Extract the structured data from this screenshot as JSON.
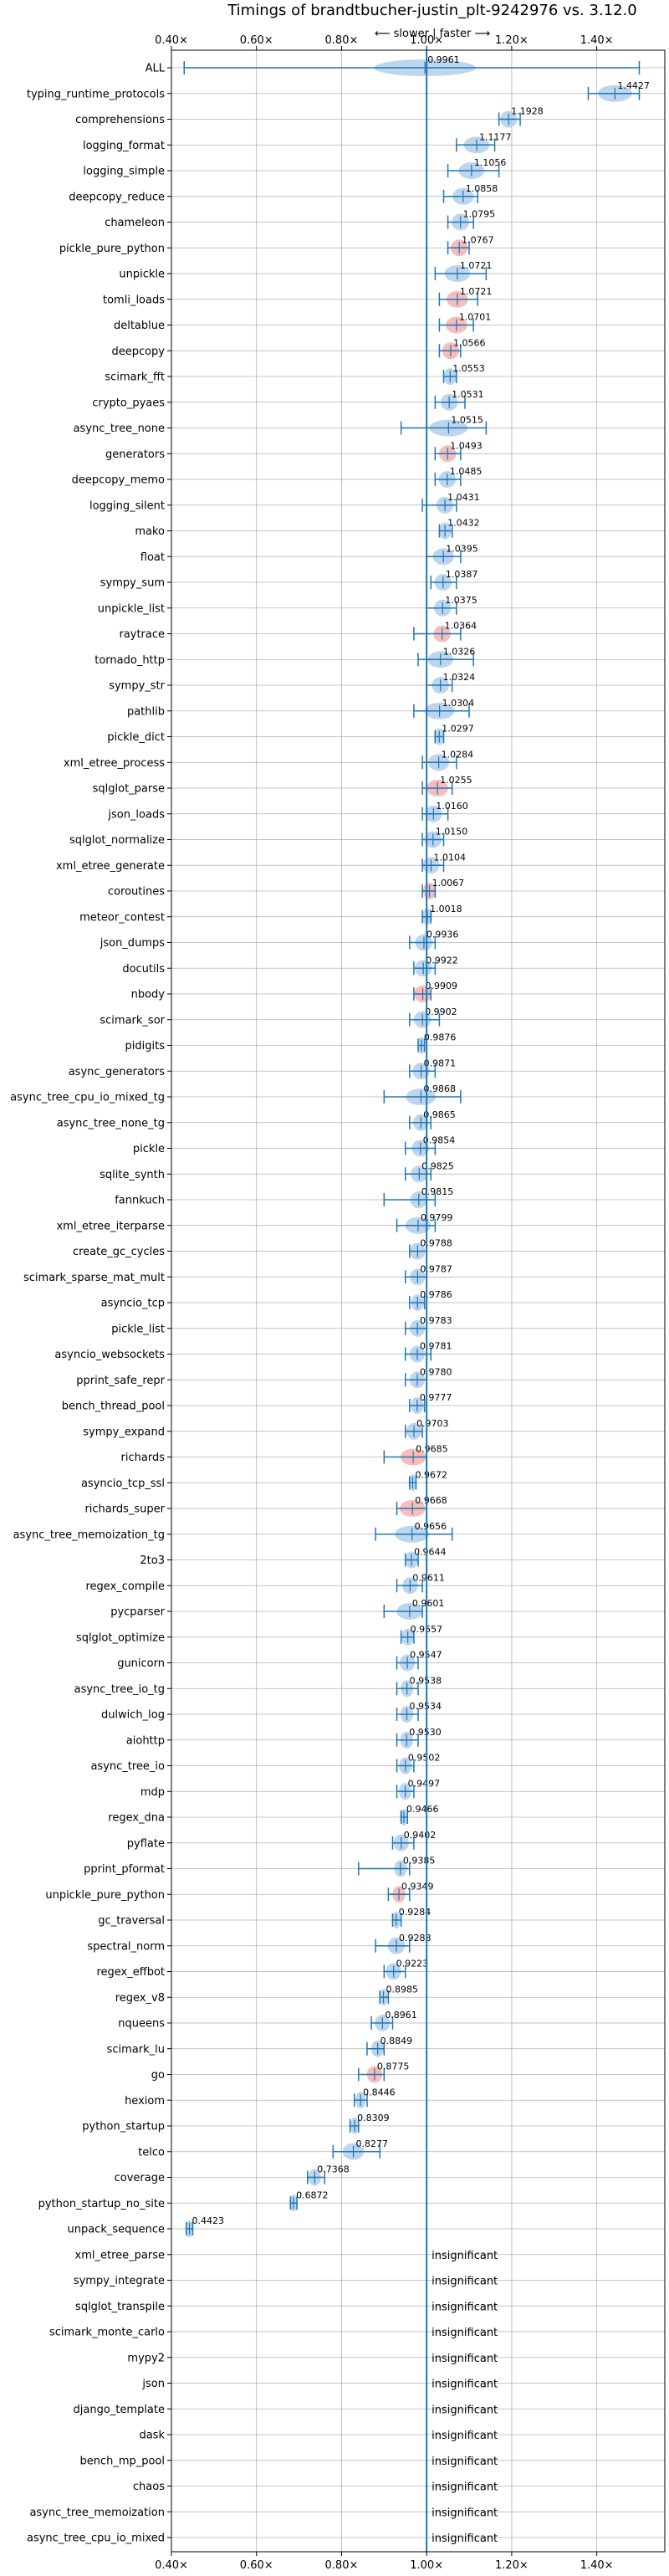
{
  "chart_data": {
    "type": "violin",
    "title": "Timings of brandtbucher-justin_plt-9242976 vs. 3.12.0",
    "subtitle": "⟵ slower | faster ⟶",
    "xlim": [
      0.4,
      1.56
    ],
    "xticks": [
      0.4,
      0.6,
      0.8,
      1.0,
      1.2,
      1.4
    ],
    "xtick_labels": [
      "0.40×",
      "0.60×",
      "0.80×",
      "1.00×",
      "1.20×",
      "1.40×"
    ],
    "reference_line": 1.0,
    "grid": true,
    "insignificant_label": "insignificant",
    "colors": {
      "faster": "#a7c7e7",
      "slower": "#f4a6a6",
      "whisker": "#1f77b4",
      "refline": "#1f77b4",
      "grid": "#b0b0b0"
    },
    "benchmarks": [
      {
        "name": "ALL",
        "label": "0.9961",
        "value": 0.9961,
        "lo": 0.43,
        "hi": 1.5,
        "color": "faster",
        "spread": 0.12
      },
      {
        "name": "typing_runtime_protocols",
        "label": "1.4427",
        "value": 1.4427,
        "lo": 1.38,
        "hi": 1.5,
        "color": "faster",
        "spread": 0.04
      },
      {
        "name": "comprehensions",
        "label": "1.1928",
        "value": 1.1928,
        "lo": 1.17,
        "hi": 1.22,
        "color": "faster",
        "spread": 0.02
      },
      {
        "name": "logging_format",
        "label": "1.1177",
        "value": 1.1177,
        "lo": 1.07,
        "hi": 1.16,
        "color": "faster",
        "spread": 0.03
      },
      {
        "name": "logging_simple",
        "label": "1.1056",
        "value": 1.1056,
        "lo": 1.05,
        "hi": 1.17,
        "color": "faster",
        "spread": 0.03
      },
      {
        "name": "deepcopy_reduce",
        "label": "1.0858",
        "value": 1.0858,
        "lo": 1.04,
        "hi": 1.12,
        "color": "faster",
        "spread": 0.025
      },
      {
        "name": "chameleon",
        "label": "1.0795",
        "value": 1.0795,
        "lo": 1.05,
        "hi": 1.11,
        "color": "faster",
        "spread": 0.02
      },
      {
        "name": "pickle_pure_python",
        "label": "1.0767",
        "value": 1.0767,
        "lo": 1.05,
        "hi": 1.1,
        "color": "slower",
        "spread": 0.02
      },
      {
        "name": "unpickle",
        "label": "1.0721",
        "value": 1.0721,
        "lo": 1.02,
        "hi": 1.14,
        "color": "faster",
        "spread": 0.03
      },
      {
        "name": "tomli_loads",
        "label": "1.0721",
        "value": 1.0721,
        "lo": 1.03,
        "hi": 1.12,
        "color": "slower",
        "spread": 0.025
      },
      {
        "name": "deltablue",
        "label": "1.0701",
        "value": 1.0701,
        "lo": 1.03,
        "hi": 1.11,
        "color": "slower",
        "spread": 0.025
      },
      {
        "name": "deepcopy",
        "label": "1.0566",
        "value": 1.0566,
        "lo": 1.03,
        "hi": 1.08,
        "color": "slower",
        "spread": 0.02
      },
      {
        "name": "scimark_fft",
        "label": "1.0553",
        "value": 1.0553,
        "lo": 1.04,
        "hi": 1.07,
        "color": "faster",
        "spread": 0.015
      },
      {
        "name": "crypto_pyaes",
        "label": "1.0531",
        "value": 1.0531,
        "lo": 1.02,
        "hi": 1.09,
        "color": "faster",
        "spread": 0.02
      },
      {
        "name": "async_tree_none",
        "label": "1.0515",
        "value": 1.0515,
        "lo": 0.94,
        "hi": 1.14,
        "color": "faster",
        "spread": 0.045
      },
      {
        "name": "generators",
        "label": "1.0493",
        "value": 1.0493,
        "lo": 1.02,
        "hi": 1.08,
        "color": "slower",
        "spread": 0.02
      },
      {
        "name": "deepcopy_memo",
        "label": "1.0485",
        "value": 1.0485,
        "lo": 1.02,
        "hi": 1.08,
        "color": "faster",
        "spread": 0.02
      },
      {
        "name": "logging_silent",
        "label": "1.0431",
        "value": 1.0431,
        "lo": 0.99,
        "hi": 1.07,
        "color": "faster",
        "spread": 0.02
      },
      {
        "name": "mako",
        "label": "1.0432",
        "value": 1.0432,
        "lo": 1.03,
        "hi": 1.06,
        "color": "faster",
        "spread": 0.015
      },
      {
        "name": "float",
        "label": "1.0395",
        "value": 1.0395,
        "lo": 1.0,
        "hi": 1.08,
        "color": "faster",
        "spread": 0.025
      },
      {
        "name": "sympy_sum",
        "label": "1.0387",
        "value": 1.0387,
        "lo": 1.01,
        "hi": 1.07,
        "color": "faster",
        "spread": 0.02
      },
      {
        "name": "unpickle_list",
        "label": "1.0375",
        "value": 1.0375,
        "lo": 1.0,
        "hi": 1.07,
        "color": "faster",
        "spread": 0.02
      },
      {
        "name": "raytrace",
        "label": "1.0364",
        "value": 1.0364,
        "lo": 0.97,
        "hi": 1.08,
        "color": "slower",
        "spread": 0.02
      },
      {
        "name": "tornado_http",
        "label": "1.0326",
        "value": 1.0326,
        "lo": 0.98,
        "hi": 1.11,
        "color": "faster",
        "spread": 0.03
      },
      {
        "name": "sympy_str",
        "label": "1.0324",
        "value": 1.0324,
        "lo": 1.0,
        "hi": 1.06,
        "color": "faster",
        "spread": 0.02
      },
      {
        "name": "pathlib",
        "label": "1.0304",
        "value": 1.0304,
        "lo": 0.97,
        "hi": 1.1,
        "color": "faster",
        "spread": 0.035
      },
      {
        "name": "pickle_dict",
        "label": "1.0297",
        "value": 1.0297,
        "lo": 1.02,
        "hi": 1.04,
        "color": "faster",
        "spread": 0.012
      },
      {
        "name": "xml_etree_process",
        "label": "1.0284",
        "value": 1.0284,
        "lo": 0.99,
        "hi": 1.07,
        "color": "faster",
        "spread": 0.025
      },
      {
        "name": "sqlglot_parse",
        "label": "1.0255",
        "value": 1.0255,
        "lo": 0.99,
        "hi": 1.06,
        "color": "slower",
        "spread": 0.025
      },
      {
        "name": "json_loads",
        "label": "1.0160",
        "value": 1.016,
        "lo": 0.99,
        "hi": 1.05,
        "color": "faster",
        "spread": 0.02
      },
      {
        "name": "sqlglot_normalize",
        "label": "1.0150",
        "value": 1.015,
        "lo": 0.99,
        "hi": 1.04,
        "color": "faster",
        "spread": 0.02
      },
      {
        "name": "xml_etree_generate",
        "label": "1.0104",
        "value": 1.0104,
        "lo": 0.99,
        "hi": 1.04,
        "color": "faster",
        "spread": 0.02
      },
      {
        "name": "coroutines",
        "label": "1.0067",
        "value": 1.0067,
        "lo": 0.99,
        "hi": 1.02,
        "color": "slower",
        "spread": 0.015
      },
      {
        "name": "meteor_contest",
        "label": "1.0018",
        "value": 1.0018,
        "lo": 0.99,
        "hi": 1.01,
        "color": "faster",
        "spread": 0.012
      },
      {
        "name": "json_dumps",
        "label": "0.9936",
        "value": 0.9936,
        "lo": 0.96,
        "hi": 1.02,
        "color": "faster",
        "spread": 0.02
      },
      {
        "name": "docutils",
        "label": "0.9922",
        "value": 0.9922,
        "lo": 0.97,
        "hi": 1.02,
        "color": "faster",
        "spread": 0.02
      },
      {
        "name": "nbody",
        "label": "0.9909",
        "value": 0.9909,
        "lo": 0.97,
        "hi": 1.01,
        "color": "slower",
        "spread": 0.02
      },
      {
        "name": "scimark_sor",
        "label": "0.9902",
        "value": 0.9902,
        "lo": 0.96,
        "hi": 1.03,
        "color": "faster",
        "spread": 0.02
      },
      {
        "name": "pidigits",
        "label": "0.9876",
        "value": 0.9876,
        "lo": 0.98,
        "hi": 0.995,
        "color": "faster",
        "spread": 0.01
      },
      {
        "name": "async_generators",
        "label": "0.9871",
        "value": 0.9871,
        "lo": 0.96,
        "hi": 1.02,
        "color": "faster",
        "spread": 0.02
      },
      {
        "name": "async_tree_cpu_io_mixed_tg",
        "label": "0.9868",
        "value": 0.9868,
        "lo": 0.9,
        "hi": 1.08,
        "color": "faster",
        "spread": 0.035
      },
      {
        "name": "async_tree_none_tg",
        "label": "0.9865",
        "value": 0.9865,
        "lo": 0.96,
        "hi": 1.01,
        "color": "faster",
        "spread": 0.018
      },
      {
        "name": "pickle",
        "label": "0.9854",
        "value": 0.9854,
        "lo": 0.95,
        "hi": 1.02,
        "color": "faster",
        "spread": 0.02
      },
      {
        "name": "sqlite_synth",
        "label": "0.9825",
        "value": 0.9825,
        "lo": 0.95,
        "hi": 1.01,
        "color": "faster",
        "spread": 0.02
      },
      {
        "name": "fannkuch",
        "label": "0.9815",
        "value": 0.9815,
        "lo": 0.9,
        "hi": 1.02,
        "color": "faster",
        "spread": 0.02
      },
      {
        "name": "xml_etree_iterparse",
        "label": "0.9799",
        "value": 0.9799,
        "lo": 0.93,
        "hi": 1.02,
        "color": "faster",
        "spread": 0.03
      },
      {
        "name": "create_gc_cycles",
        "label": "0.9788",
        "value": 0.9788,
        "lo": 0.96,
        "hi": 1.0,
        "color": "faster",
        "spread": 0.018
      },
      {
        "name": "scimark_sparse_mat_mult",
        "label": "0.9787",
        "value": 0.9787,
        "lo": 0.95,
        "hi": 1.0,
        "color": "faster",
        "spread": 0.018
      },
      {
        "name": "asyncio_tcp",
        "label": "0.9786",
        "value": 0.9786,
        "lo": 0.96,
        "hi": 0.995,
        "color": "faster",
        "spread": 0.015
      },
      {
        "name": "pickle_list",
        "label": "0.9783",
        "value": 0.9783,
        "lo": 0.95,
        "hi": 1.0,
        "color": "faster",
        "spread": 0.018
      },
      {
        "name": "asyncio_websockets",
        "label": "0.9781",
        "value": 0.9781,
        "lo": 0.95,
        "hi": 1.01,
        "color": "faster",
        "spread": 0.018
      },
      {
        "name": "pprint_safe_repr",
        "label": "0.9780",
        "value": 0.978,
        "lo": 0.95,
        "hi": 1.0,
        "color": "faster",
        "spread": 0.018
      },
      {
        "name": "bench_thread_pool",
        "label": "0.9777",
        "value": 0.9777,
        "lo": 0.96,
        "hi": 0.995,
        "color": "faster",
        "spread": 0.015
      },
      {
        "name": "sympy_expand",
        "label": "0.9703",
        "value": 0.9703,
        "lo": 0.95,
        "hi": 0.99,
        "color": "faster",
        "spread": 0.018
      },
      {
        "name": "richards",
        "label": "0.9685",
        "value": 0.9685,
        "lo": 0.9,
        "hi": 1.0,
        "color": "slower",
        "spread": 0.03
      },
      {
        "name": "asyncio_tcp_ssl",
        "label": "0.9672",
        "value": 0.9672,
        "lo": 0.96,
        "hi": 0.975,
        "color": "faster",
        "spread": 0.01
      },
      {
        "name": "richards_super",
        "label": "0.9668",
        "value": 0.9668,
        "lo": 0.93,
        "hi": 1.0,
        "color": "slower",
        "spread": 0.03
      },
      {
        "name": "async_tree_memoization_tg",
        "label": "0.9656",
        "value": 0.9656,
        "lo": 0.88,
        "hi": 1.06,
        "color": "faster",
        "spread": 0.04
      },
      {
        "name": "2to3",
        "label": "0.9644",
        "value": 0.9644,
        "lo": 0.95,
        "hi": 0.98,
        "color": "faster",
        "spread": 0.015
      },
      {
        "name": "regex_compile",
        "label": "0.9611",
        "value": 0.9611,
        "lo": 0.93,
        "hi": 0.99,
        "color": "faster",
        "spread": 0.018
      },
      {
        "name": "pycparser",
        "label": "0.9601",
        "value": 0.9601,
        "lo": 0.9,
        "hi": 0.99,
        "color": "faster",
        "spread": 0.03
      },
      {
        "name": "sqlglot_optimize",
        "label": "0.9557",
        "value": 0.9557,
        "lo": 0.94,
        "hi": 0.97,
        "color": "faster",
        "spread": 0.015
      },
      {
        "name": "gunicorn",
        "label": "0.9547",
        "value": 0.9547,
        "lo": 0.93,
        "hi": 0.98,
        "color": "faster",
        "spread": 0.018
      },
      {
        "name": "async_tree_io_tg",
        "label": "0.9538",
        "value": 0.9538,
        "lo": 0.93,
        "hi": 0.98,
        "color": "faster",
        "spread": 0.015
      },
      {
        "name": "dulwich_log",
        "label": "0.9534",
        "value": 0.9534,
        "lo": 0.93,
        "hi": 0.98,
        "color": "faster",
        "spread": 0.015
      },
      {
        "name": "aiohttp",
        "label": "0.9530",
        "value": 0.953,
        "lo": 0.93,
        "hi": 0.98,
        "color": "faster",
        "spread": 0.015
      },
      {
        "name": "async_tree_io",
        "label": "0.9502",
        "value": 0.9502,
        "lo": 0.93,
        "hi": 0.97,
        "color": "faster",
        "spread": 0.015
      },
      {
        "name": "mdp",
        "label": "0.9497",
        "value": 0.9497,
        "lo": 0.93,
        "hi": 0.97,
        "color": "faster",
        "spread": 0.015
      },
      {
        "name": "regex_dna",
        "label": "0.9466",
        "value": 0.9466,
        "lo": 0.94,
        "hi": 0.955,
        "color": "faster",
        "spread": 0.01
      },
      {
        "name": "pyflate",
        "label": "0.9402",
        "value": 0.9402,
        "lo": 0.92,
        "hi": 0.97,
        "color": "faster",
        "spread": 0.018
      },
      {
        "name": "pprint_pformat",
        "label": "0.9385",
        "value": 0.9385,
        "lo": 0.84,
        "hi": 0.96,
        "color": "faster",
        "spread": 0.015
      },
      {
        "name": "unpickle_pure_python",
        "label": "0.9349",
        "value": 0.9349,
        "lo": 0.91,
        "hi": 0.96,
        "color": "slower",
        "spread": 0.015
      },
      {
        "name": "gc_traversal",
        "label": "0.9284",
        "value": 0.9284,
        "lo": 0.92,
        "hi": 0.94,
        "color": "faster",
        "spread": 0.01
      },
      {
        "name": "spectral_norm",
        "label": "0.9288",
        "value": 0.9288,
        "lo": 0.88,
        "hi": 0.96,
        "color": "faster",
        "spread": 0.02
      },
      {
        "name": "regex_effbot",
        "label": "0.9223",
        "value": 0.9223,
        "lo": 0.9,
        "hi": 0.95,
        "color": "faster",
        "spread": 0.018
      },
      {
        "name": "regex_v8",
        "label": "0.8985",
        "value": 0.8985,
        "lo": 0.89,
        "hi": 0.91,
        "color": "faster",
        "spread": 0.01
      },
      {
        "name": "nqueens",
        "label": "0.8961",
        "value": 0.8961,
        "lo": 0.87,
        "hi": 0.92,
        "color": "faster",
        "spread": 0.018
      },
      {
        "name": "scimark_lu",
        "label": "0.8849",
        "value": 0.8849,
        "lo": 0.86,
        "hi": 0.9,
        "color": "faster",
        "spread": 0.015
      },
      {
        "name": "go",
        "label": "0.8775",
        "value": 0.8775,
        "lo": 0.84,
        "hi": 0.9,
        "color": "slower",
        "spread": 0.018
      },
      {
        "name": "hexiom",
        "label": "0.8446",
        "value": 0.8446,
        "lo": 0.83,
        "hi": 0.86,
        "color": "faster",
        "spread": 0.012
      },
      {
        "name": "python_startup",
        "label": "0.8309",
        "value": 0.8309,
        "lo": 0.82,
        "hi": 0.84,
        "color": "faster",
        "spread": 0.01
      },
      {
        "name": "telco",
        "label": "0.8277",
        "value": 0.8277,
        "lo": 0.78,
        "hi": 0.89,
        "color": "faster",
        "spread": 0.025
      },
      {
        "name": "coverage",
        "label": "0.7368",
        "value": 0.7368,
        "lo": 0.72,
        "hi": 0.76,
        "color": "faster",
        "spread": 0.015
      },
      {
        "name": "python_startup_no_site",
        "label": "0.6872",
        "value": 0.6872,
        "lo": 0.68,
        "hi": 0.695,
        "color": "faster",
        "spread": 0.01
      },
      {
        "name": "unpack_sequence",
        "label": "0.4423",
        "value": 0.4423,
        "lo": 0.435,
        "hi": 0.45,
        "color": "faster",
        "spread": 0.01
      },
      {
        "name": "xml_etree_parse",
        "insignificant": true
      },
      {
        "name": "sympy_integrate",
        "insignificant": true
      },
      {
        "name": "sqlglot_transpile",
        "insignificant": true
      },
      {
        "name": "scimark_monte_carlo",
        "insignificant": true
      },
      {
        "name": "mypy2",
        "insignificant": true
      },
      {
        "name": "json",
        "insignificant": true
      },
      {
        "name": "django_template",
        "insignificant": true
      },
      {
        "name": "dask",
        "insignificant": true
      },
      {
        "name": "bench_mp_pool",
        "insignificant": true
      },
      {
        "name": "chaos",
        "insignificant": true
      },
      {
        "name": "async_tree_memoization",
        "insignificant": true
      },
      {
        "name": "async_tree_cpu_io_mixed",
        "insignificant": true
      }
    ]
  }
}
